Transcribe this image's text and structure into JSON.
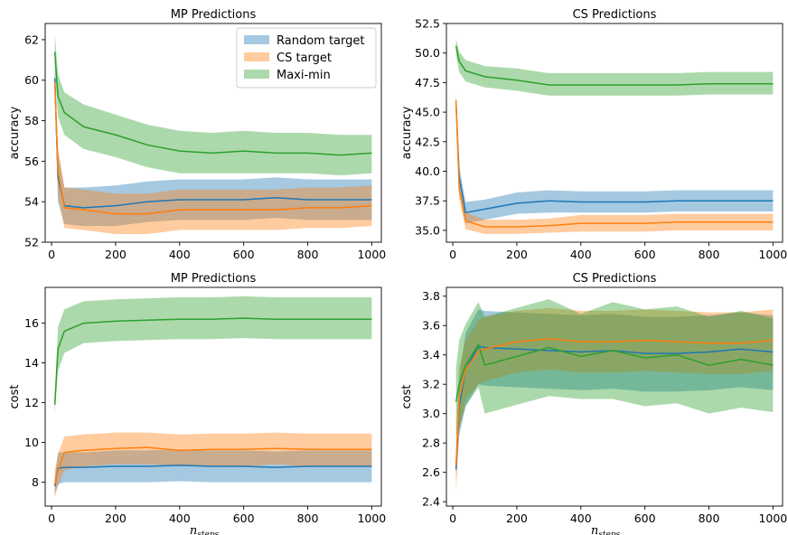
{
  "chart_data": [
    {
      "type": "line",
      "title": "MP Predictions",
      "xlabel": "",
      "ylabel": "accuracy",
      "xlim": [
        -20,
        1030
      ],
      "ylim": [
        52,
        62.8
      ],
      "xticks": [
        0,
        200,
        400,
        600,
        800,
        1000
      ],
      "yticks": [
        52,
        54,
        56,
        58,
        60,
        62
      ],
      "legend": "upper-right",
      "x": [
        10,
        20,
        40,
        100,
        200,
        300,
        400,
        500,
        600,
        700,
        800,
        900,
        1000
      ],
      "series": [
        {
          "name": "Random target",
          "color": "#1f77b4",
          "values": [
            60.1,
            55.2,
            53.8,
            53.7,
            53.8,
            54.0,
            54.1,
            54.1,
            54.1,
            54.2,
            54.1,
            54.1,
            54.1
          ],
          "lower": [
            59.3,
            54.0,
            52.9,
            52.8,
            52.8,
            53.0,
            53.1,
            53.1,
            53.1,
            53.2,
            53.1,
            53.1,
            53.1
          ],
          "upper": [
            60.8,
            56.4,
            54.7,
            54.7,
            54.8,
            55.0,
            55.1,
            55.1,
            55.1,
            55.2,
            55.1,
            55.1,
            55.1
          ]
        },
        {
          "name": "CS target",
          "color": "#ff7f0e",
          "values": [
            59.9,
            55.5,
            53.7,
            53.6,
            53.4,
            53.4,
            53.6,
            53.6,
            53.6,
            53.6,
            53.7,
            53.7,
            53.8
          ],
          "lower": [
            59.1,
            54.3,
            52.7,
            52.6,
            52.4,
            52.4,
            52.6,
            52.6,
            52.6,
            52.6,
            52.7,
            52.7,
            52.8
          ],
          "upper": [
            60.6,
            56.7,
            54.7,
            54.6,
            54.4,
            54.4,
            54.6,
            54.6,
            54.6,
            54.6,
            54.7,
            54.7,
            54.8
          ]
        },
        {
          "name": "Maxi-min",
          "color": "#2ca02c",
          "values": [
            61.4,
            59.2,
            58.4,
            57.7,
            57.3,
            56.8,
            56.5,
            56.4,
            56.5,
            56.4,
            56.4,
            56.3,
            56.4
          ],
          "lower": [
            60.5,
            58.2,
            57.3,
            56.6,
            56.2,
            55.7,
            55.4,
            55.4,
            55.4,
            55.4,
            55.4,
            55.3,
            55.4
          ],
          "upper": [
            62.3,
            60.3,
            59.4,
            58.8,
            58.3,
            57.8,
            57.5,
            57.4,
            57.5,
            57.4,
            57.4,
            57.3,
            57.3
          ]
        }
      ]
    },
    {
      "type": "line",
      "title": "CS Predictions",
      "xlabel": "",
      "ylabel": "accuracy",
      "xlim": [
        -20,
        1030
      ],
      "ylim": [
        34.0,
        52.5
      ],
      "xticks": [
        0,
        200,
        400,
        600,
        800,
        1000
      ],
      "yticks": [
        35.0,
        37.5,
        40.0,
        42.5,
        45.0,
        47.5,
        50.0,
        52.5
      ],
      "x": [
        10,
        20,
        40,
        100,
        200,
        300,
        400,
        500,
        600,
        700,
        800,
        900,
        1000
      ],
      "series": [
        {
          "name": "Random target",
          "color": "#1f77b4",
          "values": [
            45.8,
            39.5,
            36.5,
            36.8,
            37.3,
            37.5,
            37.4,
            37.4,
            37.4,
            37.5,
            37.5,
            37.5,
            37.5
          ],
          "lower": [
            45.2,
            38.6,
            35.6,
            35.9,
            36.4,
            36.5,
            36.5,
            36.5,
            36.5,
            36.6,
            36.6,
            36.6,
            36.6
          ],
          "upper": [
            46.4,
            40.4,
            37.4,
            37.6,
            38.2,
            38.4,
            38.3,
            38.3,
            38.3,
            38.4,
            38.4,
            38.4,
            38.4
          ]
        },
        {
          "name": "CS target",
          "color": "#ff7f0e",
          "values": [
            46.0,
            38.5,
            35.8,
            35.3,
            35.3,
            35.4,
            35.6,
            35.6,
            35.6,
            35.7,
            35.7,
            35.7,
            35.7
          ],
          "lower": [
            45.3,
            37.7,
            35.1,
            34.7,
            34.7,
            34.8,
            34.9,
            34.9,
            34.9,
            35.0,
            35.0,
            35.0,
            35.0
          ],
          "upper": [
            46.6,
            39.3,
            36.5,
            35.9,
            35.9,
            36.0,
            36.3,
            36.3,
            36.3,
            36.4,
            36.4,
            36.4,
            36.4
          ]
        },
        {
          "name": "Maxi-min",
          "color": "#2ca02c",
          "values": [
            50.6,
            49.3,
            48.5,
            48.0,
            47.7,
            47.3,
            47.3,
            47.3,
            47.3,
            47.3,
            47.4,
            47.4,
            47.4
          ],
          "lower": [
            49.8,
            48.4,
            47.6,
            47.1,
            46.8,
            46.4,
            46.4,
            46.4,
            46.4,
            46.4,
            46.5,
            46.5,
            46.5
          ],
          "upper": [
            51.2,
            50.1,
            49.4,
            48.9,
            48.7,
            48.3,
            48.3,
            48.3,
            48.3,
            48.3,
            48.4,
            48.4,
            48.4
          ]
        }
      ]
    },
    {
      "type": "line",
      "title": "MP Predictions",
      "xlabel": "n_steps",
      "ylabel": "cost",
      "xlim": [
        -20,
        1030
      ],
      "ylim": [
        6.8,
        17.8
      ],
      "xticks": [
        0,
        200,
        400,
        600,
        800,
        1000
      ],
      "yticks": [
        8,
        10,
        12,
        14,
        16
      ],
      "x": [
        10,
        20,
        40,
        100,
        200,
        300,
        400,
        500,
        600,
        700,
        800,
        900,
        1000
      ],
      "series": [
        {
          "name": "Random target",
          "color": "#1f77b4",
          "values": [
            7.8,
            8.7,
            8.75,
            8.75,
            8.8,
            8.8,
            8.85,
            8.8,
            8.8,
            8.75,
            8.8,
            8.8,
            8.8
          ],
          "lower": [
            7.4,
            7.9,
            8.0,
            8.0,
            8.0,
            8.0,
            8.05,
            8.0,
            8.0,
            8.0,
            8.0,
            8.0,
            8.0
          ],
          "upper": [
            8.2,
            9.5,
            9.5,
            9.5,
            9.6,
            9.6,
            9.65,
            9.6,
            9.6,
            9.55,
            9.6,
            9.6,
            9.6
          ]
        },
        {
          "name": "CS target",
          "color": "#ff7f0e",
          "values": [
            7.9,
            8.6,
            9.5,
            9.6,
            9.7,
            9.75,
            9.6,
            9.65,
            9.65,
            9.7,
            9.65,
            9.65,
            9.65
          ],
          "lower": [
            7.2,
            7.8,
            8.6,
            8.8,
            8.9,
            8.9,
            8.8,
            8.8,
            8.8,
            8.9,
            8.8,
            8.8,
            8.8
          ],
          "upper": [
            8.6,
            9.4,
            10.3,
            10.4,
            10.5,
            10.5,
            10.4,
            10.45,
            10.45,
            10.5,
            10.45,
            10.45,
            10.45
          ]
        },
        {
          "name": "Maxi-min",
          "color": "#2ca02c",
          "values": [
            11.9,
            14.7,
            15.6,
            16.0,
            16.1,
            16.15,
            16.2,
            16.2,
            16.25,
            16.2,
            16.2,
            16.2,
            16.2
          ],
          "lower": [
            11.4,
            13.6,
            14.5,
            15.0,
            15.1,
            15.15,
            15.2,
            15.2,
            15.25,
            15.2,
            15.2,
            15.2,
            15.2
          ],
          "upper": [
            12.4,
            15.8,
            16.7,
            17.1,
            17.2,
            17.25,
            17.3,
            17.3,
            17.35,
            17.3,
            17.3,
            17.3,
            17.3
          ]
        }
      ]
    },
    {
      "type": "line",
      "title": "CS Predictions",
      "xlabel": "n_steps",
      "ylabel": "cost",
      "xlim": [
        -20,
        1030
      ],
      "ylim": [
        2.37,
        3.86
      ],
      "xticks": [
        0,
        200,
        400,
        600,
        800,
        1000
      ],
      "yticks": [
        2.4,
        2.6,
        2.8,
        3.0,
        3.2,
        3.4,
        3.6,
        3.8
      ],
      "x": [
        10,
        20,
        40,
        80,
        100,
        200,
        300,
        400,
        500,
        600,
        700,
        800,
        900,
        1000
      ],
      "series": [
        {
          "name": "Random target",
          "color": "#1f77b4",
          "values": [
            2.62,
            3.05,
            3.3,
            3.46,
            3.45,
            3.44,
            3.43,
            3.42,
            3.43,
            3.41,
            3.41,
            3.42,
            3.44,
            3.42
          ],
          "lower": [
            2.55,
            2.85,
            3.05,
            3.2,
            3.19,
            3.18,
            3.17,
            3.16,
            3.17,
            3.15,
            3.15,
            3.16,
            3.18,
            3.16
          ],
          "upper": [
            2.7,
            3.25,
            3.55,
            3.71,
            3.7,
            3.69,
            3.68,
            3.67,
            3.68,
            3.66,
            3.66,
            3.67,
            3.69,
            3.67
          ]
        },
        {
          "name": "CS target",
          "color": "#ff7f0e",
          "values": [
            2.65,
            3.1,
            3.3,
            3.42,
            3.44,
            3.49,
            3.51,
            3.49,
            3.49,
            3.5,
            3.49,
            3.48,
            3.48,
            3.5
          ],
          "lower": [
            2.45,
            2.88,
            3.1,
            3.2,
            3.22,
            3.28,
            3.3,
            3.28,
            3.28,
            3.29,
            3.28,
            3.27,
            3.27,
            3.29
          ],
          "upper": [
            2.85,
            3.32,
            3.5,
            3.64,
            3.66,
            3.7,
            3.72,
            3.7,
            3.7,
            3.71,
            3.7,
            3.69,
            3.69,
            3.71
          ]
        },
        {
          "name": "Maxi-min",
          "color": "#2ca02c",
          "values": [
            3.08,
            3.2,
            3.33,
            3.47,
            3.33,
            3.39,
            3.45,
            3.39,
            3.43,
            3.38,
            3.4,
            3.33,
            3.37,
            3.33
          ],
          "lower": [
            2.85,
            2.9,
            3.05,
            3.18,
            3.0,
            3.06,
            3.12,
            3.1,
            3.1,
            3.05,
            3.07,
            3.0,
            3.04,
            3.01
          ],
          "upper": [
            3.31,
            3.5,
            3.61,
            3.76,
            3.66,
            3.72,
            3.78,
            3.68,
            3.76,
            3.71,
            3.73,
            3.66,
            3.7,
            3.65
          ]
        }
      ]
    }
  ]
}
